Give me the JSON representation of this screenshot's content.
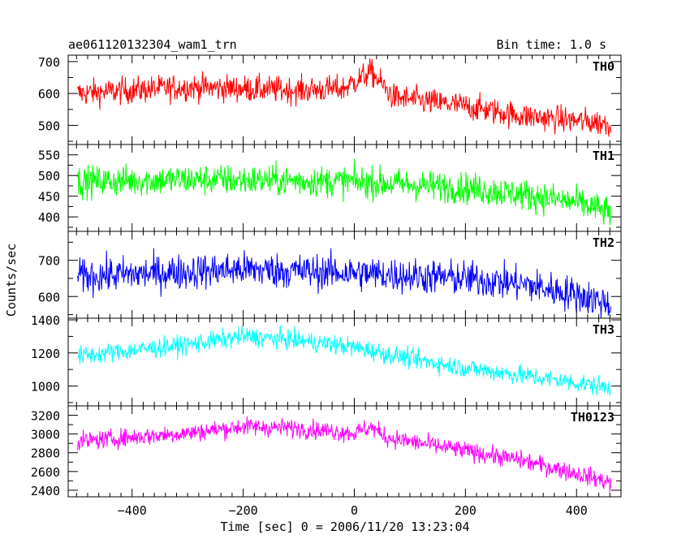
{
  "header": {
    "title": "ae061120132304_wam1_trn",
    "bin_time": "Bin time: 1.0 s"
  },
  "chart_data": {
    "type": "line",
    "xlabel": "Time [sec] 0 = 2006/11/20 13:23:04",
    "ylabel": "Counts/sec",
    "xlim": [
      -515,
      480
    ],
    "x_ticks": [
      -400,
      -200,
      0,
      200,
      400
    ],
    "x_tick_labels": [
      "−400",
      "−200",
      "0",
      "200",
      "400"
    ],
    "x_range": [
      -498,
      462
    ],
    "grid": false,
    "panels": [
      {
        "name": "TH0",
        "color": "#ff0000",
        "ylim": [
          440,
          720
        ],
        "y_ticks": [
          500,
          600,
          700
        ],
        "y_tick_labels": [
          "500",
          "600",
          "700"
        ],
        "noise": 30,
        "trend": [
          [
            -498,
            600
          ],
          [
            -300,
            620
          ],
          [
            -100,
            610
          ],
          [
            -20,
            615
          ],
          [
            30,
            668
          ],
          [
            70,
            588
          ],
          [
            200,
            560
          ],
          [
            300,
            530
          ],
          [
            462,
            505
          ]
        ]
      },
      {
        "name": "TH1",
        "color": "#00ff00",
        "ylim": [
          365,
          575
        ],
        "y_ticks": [
          400,
          450,
          500,
          550
        ],
        "y_tick_labels": [
          "400",
          "450",
          "500",
          "550"
        ],
        "noise": 27,
        "trend": [
          [
            -498,
            485
          ],
          [
            -300,
            490
          ],
          [
            -100,
            487
          ],
          [
            0,
            485
          ],
          [
            200,
            470
          ],
          [
            300,
            455
          ],
          [
            400,
            435
          ],
          [
            462,
            410
          ]
        ]
      },
      {
        "name": "TH2",
        "color": "#0000ff",
        "ylim": [
          540,
          780
        ],
        "y_ticks": [
          600,
          700
        ],
        "y_tick_labels": [
          "600",
          "700"
        ],
        "noise": 35,
        "trend": [
          [
            -498,
            655
          ],
          [
            -200,
            675
          ],
          [
            0,
            665
          ],
          [
            200,
            650
          ],
          [
            300,
            635
          ],
          [
            400,
            605
          ],
          [
            462,
            580
          ]
        ]
      },
      {
        "name": "TH3",
        "color": "#00ffff",
        "ylim": [
          880,
          1410
        ],
        "y_ticks": [
          1000,
          1200,
          1400
        ],
        "y_tick_labels": [
          "1000",
          "1200",
          "1400"
        ],
        "noise": 42,
        "trend": [
          [
            -498,
            1180
          ],
          [
            -300,
            1250
          ],
          [
            -200,
            1300
          ],
          [
            -100,
            1275
          ],
          [
            0,
            1235
          ],
          [
            100,
            1165
          ],
          [
            200,
            1110
          ],
          [
            300,
            1065
          ],
          [
            400,
            1020
          ],
          [
            462,
            990
          ]
        ]
      },
      {
        "name": "TH0123",
        "color": "#ff00ff",
        "ylim": [
          2330,
          3300
        ],
        "y_ticks": [
          2400,
          2600,
          2800,
          3000,
          3200
        ],
        "y_tick_labels": [
          "2400",
          "2600",
          "2800",
          "3000",
          "3200"
        ],
        "noise": 70,
        "trend": [
          [
            -498,
            2920
          ],
          [
            -300,
            3010
          ],
          [
            -200,
            3080
          ],
          [
            -100,
            3060
          ],
          [
            0,
            3010
          ],
          [
            30,
            3075
          ],
          [
            60,
            2960
          ],
          [
            200,
            2820
          ],
          [
            300,
            2720
          ],
          [
            400,
            2580
          ],
          [
            462,
            2480
          ]
        ]
      }
    ]
  }
}
